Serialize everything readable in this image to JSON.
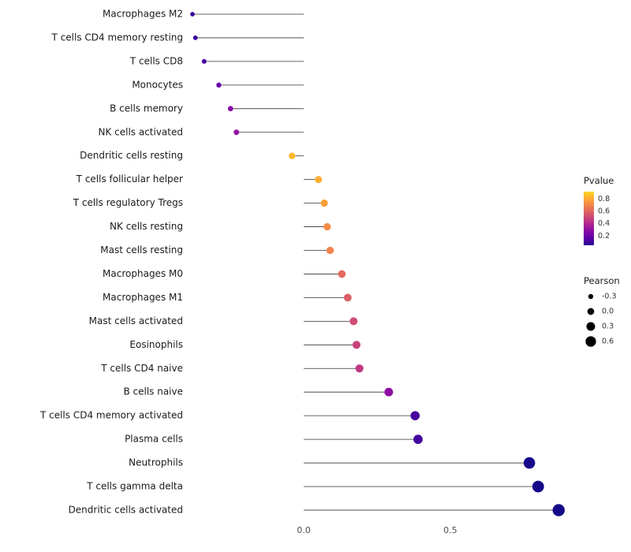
{
  "chart_data": {
    "type": "scatter",
    "subtype": "lollipop",
    "title": "",
    "xlabel": "",
    "ylabel": "",
    "xlim": [
      -0.45,
      0.95
    ],
    "x_ticks": [
      "0.0",
      "0.5"
    ],
    "x_tick_values": [
      0.0,
      0.5
    ],
    "grid": false,
    "legend_position": "right",
    "rows": [
      {
        "label": "Macrophages M2",
        "pearson": -0.38,
        "pvalue": 0.08
      },
      {
        "label": "T cells CD4 memory resting",
        "pearson": -0.37,
        "pvalue": 0.09
      },
      {
        "label": "T cells CD8",
        "pearson": -0.34,
        "pvalue": 0.12
      },
      {
        "label": "Monocytes",
        "pearson": -0.29,
        "pvalue": 0.2
      },
      {
        "label": "B cells memory",
        "pearson": -0.25,
        "pvalue": 0.28
      },
      {
        "label": "NK cells activated",
        "pearson": -0.23,
        "pvalue": 0.32
      },
      {
        "label": "Dendritic cells resting",
        "pearson": -0.04,
        "pvalue": 0.85
      },
      {
        "label": "T cells follicular helper",
        "pearson": 0.05,
        "pvalue": 0.82
      },
      {
        "label": "T cells regulatory Tregs",
        "pearson": 0.07,
        "pvalue": 0.78
      },
      {
        "label": "NK cells resting",
        "pearson": 0.08,
        "pvalue": 0.72
      },
      {
        "label": "Mast cells resting",
        "pearson": 0.09,
        "pvalue": 0.7
      },
      {
        "label": "Macrophages M0",
        "pearson": 0.13,
        "pvalue": 0.62
      },
      {
        "label": "Macrophages M1",
        "pearson": 0.15,
        "pvalue": 0.58
      },
      {
        "label": "Mast cells activated",
        "pearson": 0.17,
        "pvalue": 0.52
      },
      {
        "label": "Eosinophils",
        "pearson": 0.18,
        "pvalue": 0.48
      },
      {
        "label": "T cells CD4 naive",
        "pearson": 0.19,
        "pvalue": 0.45
      },
      {
        "label": "B cells naive",
        "pearson": 0.29,
        "pvalue": 0.3
      },
      {
        "label": "T cells CD4 memory activated",
        "pearson": 0.38,
        "pvalue": 0.12
      },
      {
        "label": "Plasma cells",
        "pearson": 0.39,
        "pvalue": 0.1
      },
      {
        "label": "Neutrophils",
        "pearson": 0.77,
        "pvalue": 0.02
      },
      {
        "label": "T cells gamma delta",
        "pearson": 0.8,
        "pvalue": 0.015
      },
      {
        "label": "Dendritic cells activated",
        "pearson": 0.87,
        "pvalue": 0.01
      }
    ],
    "color_legend": {
      "title": "Pvalue",
      "colormap": "plasma",
      "tick_labels": [
        "0.8",
        "0.6",
        "0.4",
        "0.2"
      ],
      "tick_values": [
        0.8,
        0.6,
        0.4,
        0.2
      ],
      "domain_top": 0.92,
      "domain_bottom": 0.05
    },
    "size_legend": {
      "title": "Pearson",
      "tick_labels": [
        "-0.3",
        "0.0",
        "0.3",
        "0.6"
      ],
      "tick_values": [
        -0.3,
        0.0,
        0.3,
        0.6
      ]
    },
    "colors": {
      "stem": "#333333",
      "label_text": "#1a1a1a",
      "tick_text": "#4d4d4d",
      "legend_text": "#333333",
      "size_dot": "#000000",
      "background": "#ffffff"
    }
  }
}
